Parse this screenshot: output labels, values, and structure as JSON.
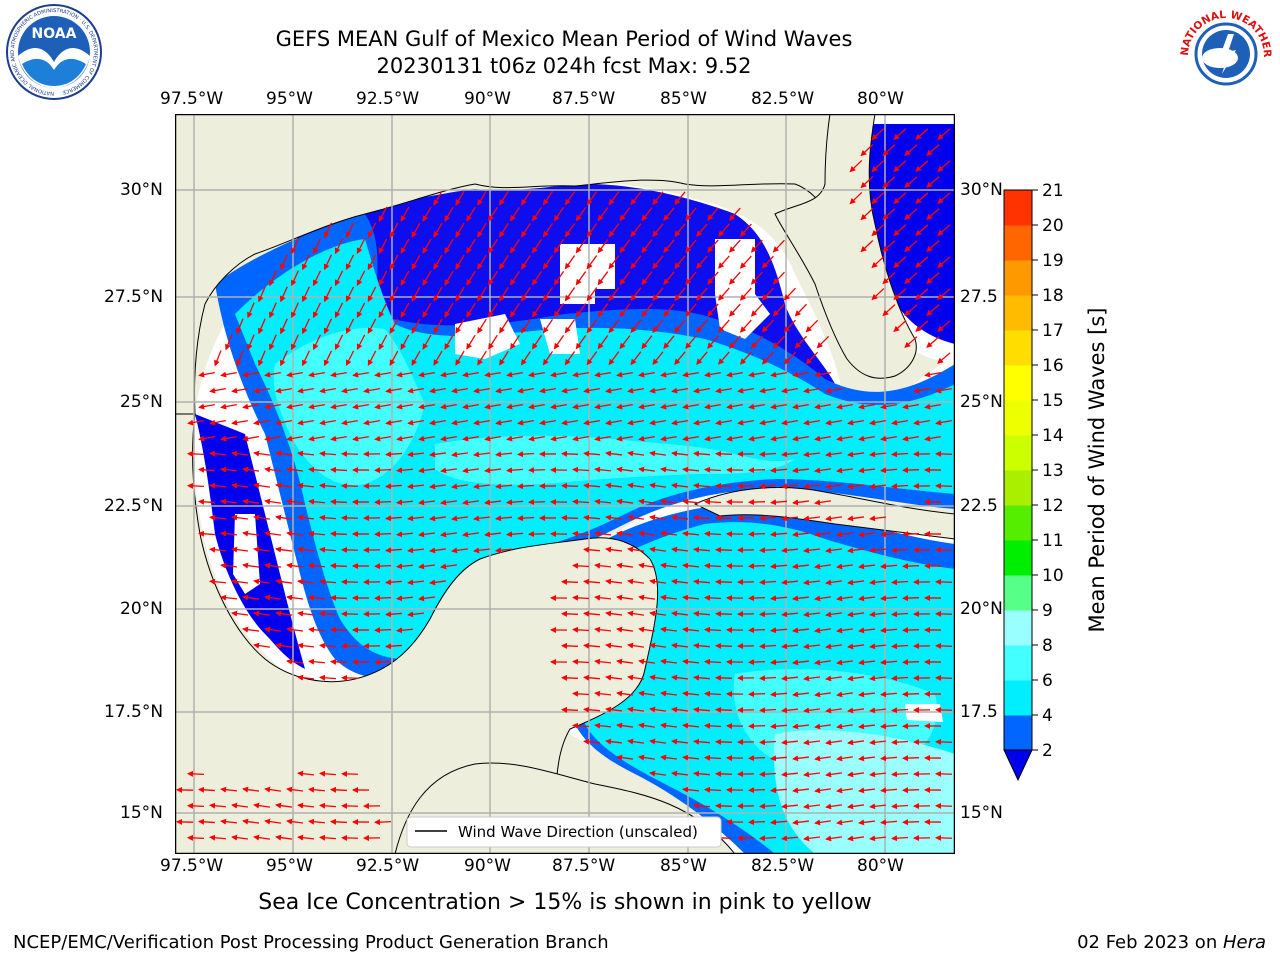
{
  "title": {
    "line1": "GEFS MEAN Gulf of Mexico Mean Period of Wind Waves",
    "line2": "20230131 t06z 024h fcst   Max: 9.52"
  },
  "map": {
    "lon_ticks": [
      "97.5°W",
      "95°W",
      "92.5°W",
      "90°W",
      "87.5°W",
      "85°W",
      "82.5°W",
      "80°W"
    ],
    "lat_ticks_left": [
      "30°N",
      "27.5°N",
      "25°N",
      "22.5°N",
      "20°N",
      "17.5°N",
      "15°N"
    ],
    "lat_ticks_right": [
      "30°N",
      "27.5",
      "25°N",
      "22.5",
      "20°N",
      "17.5",
      "15°N"
    ],
    "legend_label": "Wind Wave Direction (unscaled)",
    "colors": {
      "land": "#eeeedd",
      "arrow": "#ff0000",
      "grid": "#b0b0b0"
    }
  },
  "colorbar": {
    "label": "Mean Period of Wind Waves [s]",
    "levels": [
      "2",
      "4",
      "6",
      "8",
      "9",
      "10",
      "11",
      "12",
      "13",
      "14",
      "15",
      "16",
      "17",
      "18",
      "19",
      "20",
      "21"
    ],
    "colors": [
      "#0066ff",
      "#00eeff",
      "#44ffff",
      "#99ffff",
      "#55ff88",
      "#00ee00",
      "#55ee00",
      "#aaee00",
      "#ccff00",
      "#eeff00",
      "#ffff00",
      "#ffdd00",
      "#ffbb00",
      "#ff9900",
      "#ff6600",
      "#ff3300",
      "#ff0000"
    ],
    "under_color": "#0000ee"
  },
  "caption": "Sea Ice Concentration > 15% is shown in pink to yellow",
  "footer": {
    "left": "NCEP/EMC/Verification Post Processing Product Generation Branch",
    "right_date": "02 Feb 2023 on ",
    "right_machine": "Hera"
  },
  "logos": {
    "noaa": "NOAA",
    "noaa_ring": "NATIONAL OCEANIC AND ATMOSPHERIC ADMINISTRATION · U.S. DEPARTMENT OF COMMERCE",
    "nws_ring": "NATIONAL WEATHER SERVICE"
  }
}
